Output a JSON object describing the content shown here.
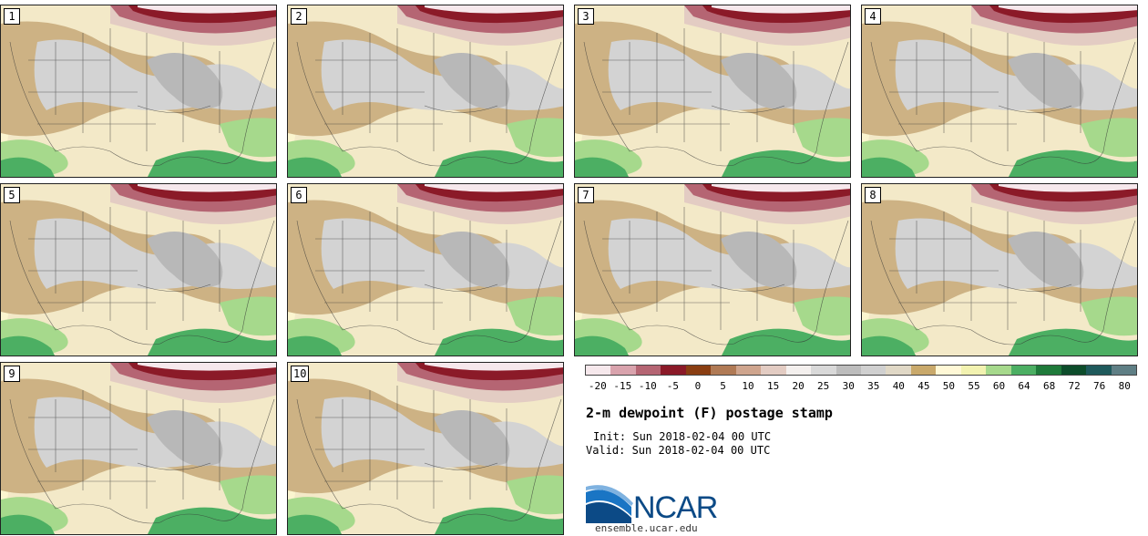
{
  "panels": [
    {
      "label": "1"
    },
    {
      "label": "2"
    },
    {
      "label": "3"
    },
    {
      "label": "4"
    },
    {
      "label": "5"
    },
    {
      "label": "6"
    },
    {
      "label": "7"
    },
    {
      "label": "8"
    },
    {
      "label": "9"
    },
    {
      "label": "10"
    }
  ],
  "colorbar": {
    "colors": [
      "#f6e8ec",
      "#d9a3ad",
      "#b56573",
      "#8b1a28",
      "#8a3e12",
      "#b07a55",
      "#cfa58e",
      "#e3ccc3",
      "#f4f0ee",
      "#d9d9d9",
      "#bdbdbd",
      "#d0d0d0",
      "#e0d8c6",
      "#c9a96b",
      "#fff8d6",
      "#f2f2b0",
      "#a6d98c",
      "#4caf63",
      "#1f7a3a",
      "#0d4d2b",
      "#1f5a5c",
      "#5f7f85"
    ],
    "ticks": [
      "-20",
      "-15",
      "-10",
      "-5",
      "0",
      "5",
      "10",
      "15",
      "20",
      "25",
      "30",
      "35",
      "40",
      "45",
      "50",
      "55",
      "60",
      "64",
      "68",
      "72",
      "76",
      "80"
    ]
  },
  "title": "2-m dewpoint (F) postage stamp",
  "init": "Init: Sun 2018-02-04 00 UTC",
  "valid": "Valid: Sun 2018-02-04 00 UTC",
  "logo": {
    "name": "NCAR",
    "url": "ensemble.ucar.edu"
  }
}
